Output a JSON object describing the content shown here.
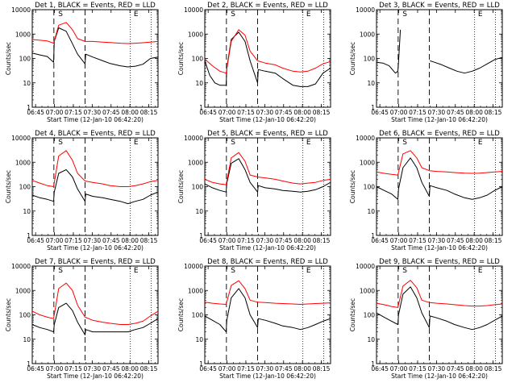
{
  "page": {
    "start_time_text": "Start Time (12-Jan-10 06:42:20)",
    "ylabel": "Counts/sec"
  },
  "colors": {
    "events": "#000000",
    "lld": "#ff0000",
    "frame": "#000000"
  },
  "axes_common": {
    "x_ticks": [
      "06:45",
      "07:00",
      "07:15",
      "07:30",
      "07:45",
      "08:00",
      "08:15"
    ],
    "x_tick_minutes": [
      2.67,
      17.67,
      32.67,
      47.67,
      62.67,
      77.67,
      92.67
    ],
    "xlim_minutes": [
      0,
      100
    ],
    "y_ticks": [
      "1",
      "10",
      "100",
      "1000",
      "10000"
    ],
    "y_log": true,
    "ylim": [
      1,
      10000
    ],
    "dashed_lines_minutes": [
      17.2,
      42.0
    ],
    "dotted_lines_minutes": [
      78.0,
      94.5
    ],
    "markers": [
      {
        "label": "S",
        "minute": 22.5
      },
      {
        "label": "E",
        "minute": 82.5
      }
    ],
    "legend_series": [
      "BLACK = Events",
      "RED = LLD"
    ]
  },
  "chart_data": [
    {
      "type": "line",
      "title": "Det 1, BLACK = Events, RED = LLD",
      "series": [
        {
          "name": "Events",
          "color": "#000000",
          "x": [
            0,
            6,
            12,
            17,
            17.5,
            21,
            27,
            32,
            36,
            42,
            42.5,
            48,
            56,
            62,
            70,
            76,
            82,
            88,
            94,
            100
          ],
          "y": [
            165,
            140,
            120,
            70,
            500,
            1800,
            1300,
            400,
            150,
            60,
            150,
            115,
            80,
            62,
            50,
            45,
            48,
            58,
            100,
            115
          ]
        },
        {
          "name": "LLD",
          "color": "#ff0000",
          "x": [
            0,
            6,
            12,
            17,
            21,
            27,
            32,
            36,
            42,
            48,
            56,
            62,
            70,
            76,
            82,
            88,
            94,
            100
          ],
          "y": [
            600,
            560,
            520,
            420,
            2300,
            3000,
            1500,
            650,
            500,
            500,
            470,
            450,
            420,
            410,
            420,
            440,
            470,
            500
          ]
        }
      ]
    },
    {
      "type": "line",
      "title": "Det 2, BLACK = Events, RED = LLD",
      "series": [
        {
          "name": "Events",
          "color": "#000000",
          "x": [
            0,
            4,
            8,
            12,
            17,
            17.5,
            21,
            27,
            32,
            36,
            42,
            42.5,
            48,
            56,
            62,
            70,
            76,
            82,
            88,
            94,
            100
          ],
          "y": [
            80,
            20,
            10,
            8,
            8,
            40,
            600,
            1200,
            500,
            80,
            10,
            35,
            30,
            25,
            15,
            8,
            7,
            7,
            9,
            25,
            40
          ]
        },
        {
          "name": "LLD",
          "color": "#ff0000",
          "x": [
            0,
            6,
            12,
            17,
            21,
            27,
            32,
            36,
            42,
            48,
            56,
            62,
            70,
            76,
            82,
            88,
            94,
            100
          ],
          "y": [
            95,
            50,
            30,
            25,
            500,
            1500,
            900,
            200,
            80,
            65,
            55,
            40,
            30,
            28,
            30,
            40,
            60,
            75
          ]
        }
      ]
    },
    {
      "type": "line",
      "title": "Det 3, BLACK = Events, RED = LLD",
      "series": [
        {
          "name": "Events",
          "color": "#000000",
          "x": [
            0,
            5,
            10,
            15,
            17,
            17.5,
            19,
            19.5,
            42.5,
            46,
            52,
            58,
            64,
            70,
            76,
            82,
            88,
            94,
            100
          ],
          "y": [
            70,
            65,
            50,
            25,
            30,
            70,
            1500,
            0,
            80,
            70,
            55,
            40,
            30,
            25,
            30,
            40,
            60,
            90,
            110
          ]
        },
        {
          "name": "LLD",
          "color": "#ff0000",
          "x": [],
          "y": []
        }
      ]
    },
    {
      "type": "line",
      "title": "Det 4, BLACK = Events, RED = LLD",
      "series": [
        {
          "name": "Events",
          "color": "#000000",
          "x": [
            0,
            6,
            12,
            17,
            17.5,
            21,
            27,
            32,
            36,
            42,
            42.5,
            48,
            56,
            62,
            70,
            76,
            82,
            88,
            94,
            100
          ],
          "y": [
            45,
            35,
            30,
            25,
            60,
            350,
            500,
            250,
            80,
            25,
            50,
            40,
            35,
            30,
            25,
            20,
            25,
            30,
            45,
            60
          ]
        },
        {
          "name": "LLD",
          "color": "#ff0000",
          "x": [
            0,
            6,
            12,
            17,
            21,
            27,
            32,
            36,
            42,
            48,
            56,
            62,
            70,
            76,
            82,
            88,
            94,
            100
          ],
          "y": [
            180,
            140,
            110,
            100,
            1800,
            3000,
            1200,
            350,
            170,
            150,
            130,
            110,
            100,
            100,
            110,
            130,
            160,
            180
          ]
        }
      ]
    },
    {
      "type": "line",
      "title": "Det 5, BLACK = Events, RED = LLD",
      "series": [
        {
          "name": "Events",
          "color": "#000000",
          "x": [
            0,
            6,
            12,
            17,
            17.5,
            21,
            27,
            32,
            36,
            42,
            42.5,
            48,
            56,
            62,
            70,
            76,
            82,
            88,
            94,
            100
          ],
          "y": [
            130,
            90,
            70,
            60,
            140,
            900,
            1400,
            500,
            150,
            60,
            110,
            90,
            80,
            70,
            65,
            60,
            65,
            75,
            100,
            150
          ]
        },
        {
          "name": "LLD",
          "color": "#ff0000",
          "x": [
            0,
            6,
            12,
            17,
            21,
            27,
            32,
            36,
            42,
            48,
            56,
            62,
            70,
            76,
            82,
            88,
            94,
            100
          ],
          "y": [
            200,
            150,
            130,
            120,
            1500,
            2500,
            1100,
            300,
            250,
            230,
            200,
            170,
            140,
            130,
            140,
            150,
            180,
            200
          ]
        }
      ]
    },
    {
      "type": "line",
      "title": "Det 6, BLACK = Events, RED = LLD",
      "series": [
        {
          "name": "Events",
          "color": "#000000",
          "x": [
            0,
            6,
            12,
            17,
            17.5,
            21,
            27,
            32,
            36,
            42,
            42.5,
            48,
            56,
            62,
            70,
            76,
            82,
            88,
            94,
            100
          ],
          "y": [
            100,
            70,
            50,
            30,
            80,
            600,
            1500,
            600,
            150,
            40,
            110,
            90,
            70,
            50,
            35,
            30,
            35,
            45,
            70,
            100
          ]
        },
        {
          "name": "LLD",
          "color": "#ff0000",
          "x": [
            0,
            6,
            12,
            17,
            21,
            27,
            32,
            36,
            42,
            48,
            56,
            62,
            70,
            76,
            82,
            88,
            94,
            100
          ],
          "y": [
            400,
            350,
            320,
            300,
            2200,
            3000,
            1500,
            600,
            450,
            420,
            400,
            380,
            360,
            350,
            360,
            380,
            400,
            420
          ]
        }
      ]
    },
    {
      "type": "line",
      "title": "Det 7, BLACK = Events, RED = LLD",
      "series": [
        {
          "name": "Events",
          "color": "#000000",
          "x": [
            0,
            6,
            12,
            17,
            17.5,
            21,
            27,
            32,
            36,
            42,
            42.5,
            48,
            56,
            62,
            70,
            76,
            82,
            88,
            94,
            100
          ],
          "y": [
            40,
            30,
            25,
            20,
            40,
            200,
            300,
            150,
            50,
            15,
            25,
            20,
            20,
            20,
            20,
            20,
            25,
            30,
            45,
            70
          ]
        },
        {
          "name": "LLD",
          "color": "#ff0000",
          "x": [
            0,
            6,
            12,
            17,
            21,
            27,
            32,
            36,
            42,
            48,
            56,
            62,
            70,
            76,
            82,
            88,
            94,
            100
          ],
          "y": [
            140,
            100,
            80,
            70,
            1200,
            2000,
            1000,
            250,
            80,
            60,
            50,
            45,
            40,
            40,
            45,
            55,
            90,
            140
          ]
        }
      ]
    },
    {
      "type": "line",
      "title": "Det 8, BLACK = Events, RED = LLD",
      "series": [
        {
          "name": "Events",
          "color": "#000000",
          "x": [
            0,
            6,
            12,
            17,
            17.5,
            21,
            27,
            32,
            36,
            42,
            42.5,
            48,
            56,
            62,
            70,
            76,
            82,
            88,
            94,
            100
          ],
          "y": [
            90,
            60,
            40,
            20,
            60,
            500,
            1200,
            500,
            100,
            30,
            70,
            60,
            45,
            35,
            30,
            25,
            30,
            40,
            55,
            70
          ]
        },
        {
          "name": "LLD",
          "color": "#ff0000",
          "x": [
            0,
            6,
            12,
            17,
            21,
            27,
            32,
            36,
            42,
            48,
            56,
            62,
            70,
            76,
            82,
            88,
            94,
            100
          ],
          "y": [
            330,
            300,
            280,
            270,
            1600,
            2500,
            1200,
            400,
            330,
            320,
            300,
            290,
            280,
            270,
            280,
            290,
            300,
            310
          ]
        }
      ]
    },
    {
      "type": "line",
      "title": "Det 9, BLACK = Events, RED = LLD",
      "series": [
        {
          "name": "Events",
          "color": "#000000",
          "x": [
            0,
            6,
            12,
            17,
            17.5,
            21,
            27,
            32,
            36,
            42,
            42.5,
            48,
            56,
            62,
            70,
            76,
            82,
            88,
            94,
            100
          ],
          "y": [
            120,
            80,
            55,
            40,
            100,
            700,
            1400,
            500,
            120,
            30,
            90,
            75,
            55,
            40,
            30,
            25,
            30,
            40,
            60,
            90
          ]
        },
        {
          "name": "LLD",
          "color": "#ff0000",
          "x": [
            0,
            6,
            12,
            17,
            21,
            27,
            32,
            36,
            42,
            48,
            56,
            62,
            70,
            76,
            82,
            88,
            94,
            100
          ],
          "y": [
            300,
            260,
            220,
            200,
            1500,
            2600,
            1300,
            400,
            320,
            300,
            280,
            260,
            240,
            230,
            230,
            240,
            260,
            280
          ]
        }
      ]
    }
  ]
}
